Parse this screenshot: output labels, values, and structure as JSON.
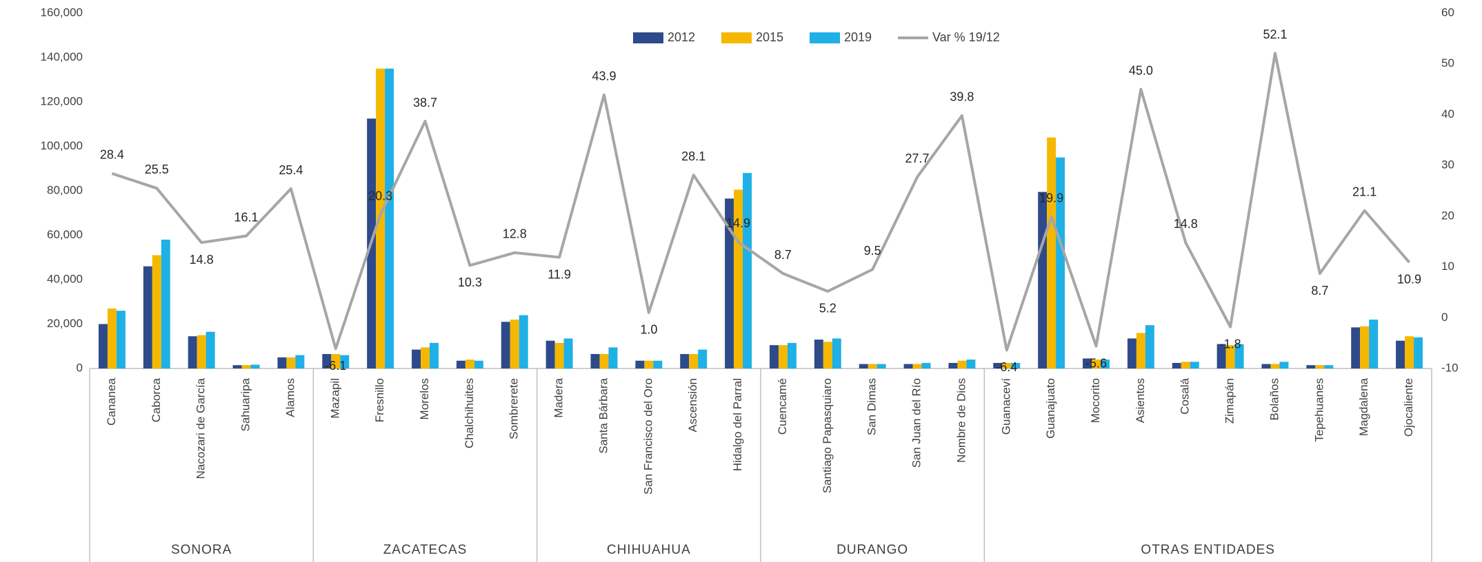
{
  "chart_data": {
    "type": "bar",
    "categories": [
      "Cananea",
      "Caborca",
      "Nacozari de García",
      "Sahuaripa",
      "Alamos",
      "Mazapil",
      "Fresnillo",
      "Morelos",
      "Chalchihuites",
      "Sombrerete",
      "Madera",
      "Santa Bárbara",
      "San Francisco del Oro",
      "Ascensión",
      "Hidalgo del Parral",
      "Cuencamé",
      "Santiago Papasquiaro",
      "San Dimas",
      "San Juan del Río",
      "Nombre de Dios",
      "Guanaceví",
      "Guanajuato",
      "Mocorito",
      "Asientos",
      "Cosalá",
      "Zimapán",
      "Bolaños",
      "Tepehuanes",
      "Magdalena",
      "Ojocaliente"
    ],
    "groups": [
      {
        "name": "SONORA",
        "size": 5
      },
      {
        "name": "ZACATECAS",
        "size": 5
      },
      {
        "name": "CHIHUAHUA",
        "size": 5
      },
      {
        "name": "DURANGO",
        "size": 5
      },
      {
        "name": "OTRAS ENTIDADES",
        "size": 10
      }
    ],
    "series": [
      {
        "name": "2012",
        "color": "#2e4a8a",
        "values": [
          20000,
          46000,
          14500,
          1500,
          5000,
          6500,
          112500,
          8500,
          3500,
          21000,
          12500,
          6500,
          3500,
          6500,
          76500,
          10500,
          13000,
          2000,
          2000,
          2500,
          2500,
          79500,
          4500,
          13500,
          2500,
          11000,
          2000,
          1500,
          18500,
          12500
        ]
      },
      {
        "name": "2015",
        "color": "#f5b800",
        "values": [
          27000,
          51000,
          15000,
          1500,
          5000,
          6500,
          135000,
          9500,
          4000,
          22000,
          11500,
          6500,
          3500,
          6500,
          80500,
          10500,
          12000,
          2000,
          2000,
          3500,
          2500,
          104000,
          4000,
          16000,
          3000,
          10500,
          2000,
          1500,
          19000,
          14500
        ]
      },
      {
        "name": "2019",
        "color": "#1fb0e6",
        "values": [
          26000,
          58000,
          16500,
          1700,
          6000,
          6000,
          135000,
          11500,
          3500,
          24000,
          13500,
          9500,
          3500,
          8500,
          88000,
          11500,
          13500,
          2000,
          2500,
          4000,
          2500,
          95000,
          4000,
          19500,
          3000,
          11000,
          3000,
          1500,
          22000,
          14000
        ]
      },
      {
        "name": "Var % 19/12",
        "color": "#a6a6a6",
        "axis": "y2",
        "type": "line",
        "values": [
          28.4,
          25.5,
          14.8,
          16.1,
          25.4,
          -6.1,
          20.3,
          38.7,
          10.3,
          12.8,
          11.9,
          43.9,
          1.0,
          28.1,
          14.9,
          8.7,
          5.2,
          9.5,
          27.7,
          39.8,
          -6.4,
          19.9,
          -5.6,
          45.0,
          14.8,
          -1.8,
          52.1,
          8.7,
          21.1,
          10.9
        ],
        "value_labels": [
          "28.4",
          "25.5",
          "14.8",
          "16.1",
          "25.4",
          "-6.1",
          "20.3",
          "38.7",
          "10.3",
          "12.8",
          "11.9",
          "43.9",
          "1.0",
          "28.1",
          "14.9",
          "8.7",
          "5.2",
          "9.5",
          "27.7",
          "39.8",
          "-6.4",
          "19.9",
          "-5.6",
          "45.0",
          "14.8",
          "-1.8",
          "52.1",
          "8.7",
          "21.1",
          "10.9"
        ]
      }
    ],
    "ylim": [
      0,
      160000
    ],
    "yticks": [
      {
        "value": 0,
        "label": "0"
      },
      {
        "value": 20000,
        "label": "20,000"
      },
      {
        "value": 40000,
        "label": "40,000"
      },
      {
        "value": 60000,
        "label": "60,000"
      },
      {
        "value": 80000,
        "label": "80,000"
      },
      {
        "value": 100000,
        "label": "100,000"
      },
      {
        "value": 120000,
        "label": "120,000"
      },
      {
        "value": 140000,
        "label": "140,000"
      },
      {
        "value": 160000,
        "label": "160,000"
      }
    ],
    "y2lim": [
      -10,
      60
    ],
    "y2ticks": [
      -10,
      0,
      10,
      20,
      30,
      40,
      50,
      60
    ],
    "legend": "top"
  }
}
